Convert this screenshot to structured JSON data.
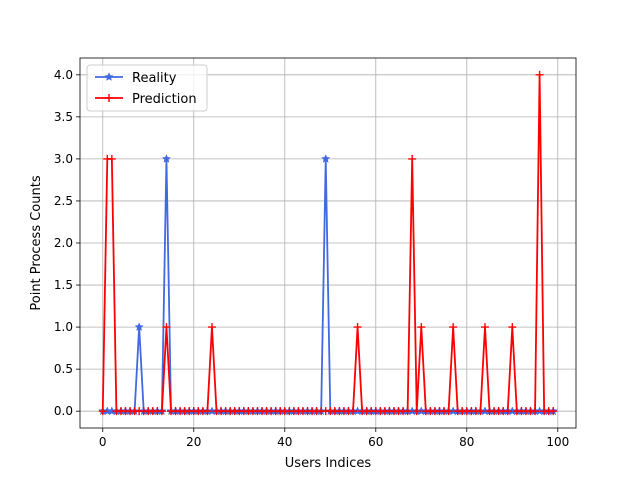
{
  "chart_data": {
    "type": "line",
    "title": "",
    "xlabel": "Users Indices",
    "ylabel": "Point Process Counts",
    "xlim": [
      -5,
      104
    ],
    "ylim": [
      -0.2,
      4.2
    ],
    "xticks": [
      0,
      20,
      40,
      60,
      80,
      100
    ],
    "xtick_labels": [
      "0",
      "20",
      "40",
      "60",
      "80",
      "100"
    ],
    "yticks": [
      0.0,
      0.5,
      1.0,
      1.5,
      2.0,
      2.5,
      3.0,
      3.5,
      4.0
    ],
    "ytick_labels": [
      "0.0",
      "0.5",
      "1.0",
      "1.5",
      "2.0",
      "2.5",
      "3.0",
      "3.5",
      "4.0"
    ],
    "grid": true,
    "legend_position": "top-left",
    "x": [
      0,
      1,
      2,
      3,
      4,
      5,
      6,
      7,
      8,
      9,
      10,
      11,
      12,
      13,
      14,
      15,
      16,
      17,
      18,
      19,
      20,
      21,
      22,
      23,
      24,
      25,
      26,
      27,
      28,
      29,
      30,
      31,
      32,
      33,
      34,
      35,
      36,
      37,
      38,
      39,
      40,
      41,
      42,
      43,
      44,
      45,
      46,
      47,
      48,
      49,
      50,
      51,
      52,
      53,
      54,
      55,
      56,
      57,
      58,
      59,
      60,
      61,
      62,
      63,
      64,
      65,
      66,
      67,
      68,
      69,
      70,
      71,
      72,
      73,
      74,
      75,
      76,
      77,
      78,
      79,
      80,
      81,
      82,
      83,
      84,
      85,
      86,
      87,
      88,
      89,
      90,
      91,
      92,
      93,
      94,
      95,
      96,
      97,
      98,
      99
    ],
    "series": [
      {
        "name": "Reality",
        "color": "#4169e1",
        "marker": "star",
        "values": [
          0,
          0,
          0,
          0,
          0,
          0,
          0,
          0,
          1,
          0,
          0,
          0,
          0,
          0,
          3,
          0,
          0,
          0,
          0,
          0,
          0,
          0,
          0,
          0,
          0,
          0,
          0,
          0,
          0,
          0,
          0,
          0,
          0,
          0,
          0,
          0,
          0,
          0,
          0,
          0,
          0,
          0,
          0,
          0,
          0,
          0,
          0,
          0,
          0,
          3,
          0,
          0,
          0,
          0,
          0,
          0,
          0,
          0,
          0,
          0,
          0,
          0,
          0,
          0,
          0,
          0,
          0,
          0,
          0,
          0,
          0,
          0,
          0,
          0,
          0,
          0,
          0,
          0,
          0,
          0,
          0,
          0,
          0,
          0,
          0,
          0,
          0,
          0,
          0,
          0,
          0,
          0,
          0,
          0,
          0,
          0,
          0,
          0,
          0,
          0
        ]
      },
      {
        "name": "Prediction",
        "color": "#ff0000",
        "marker": "plus",
        "values": [
          0,
          3,
          3,
          0,
          0,
          0,
          0,
          0,
          0,
          0,
          0,
          0,
          0,
          0,
          1,
          0,
          0,
          0,
          0,
          0,
          0,
          0,
          0,
          0,
          1,
          0,
          0,
          0,
          0,
          0,
          0,
          0,
          0,
          0,
          0,
          0,
          0,
          0,
          0,
          0,
          0,
          0,
          0,
          0,
          0,
          0,
          0,
          0,
          0,
          0,
          0,
          0,
          0,
          0,
          0,
          0,
          1,
          0,
          0,
          0,
          0,
          0,
          0,
          0,
          0,
          0,
          0,
          0,
          3,
          0,
          1,
          0,
          0,
          0,
          0,
          0,
          0,
          1,
          0,
          0,
          0,
          0,
          0,
          0,
          1,
          0,
          0,
          0,
          0,
          0,
          1,
          0,
          0,
          0,
          0,
          0,
          4,
          0,
          0,
          0
        ]
      }
    ]
  }
}
